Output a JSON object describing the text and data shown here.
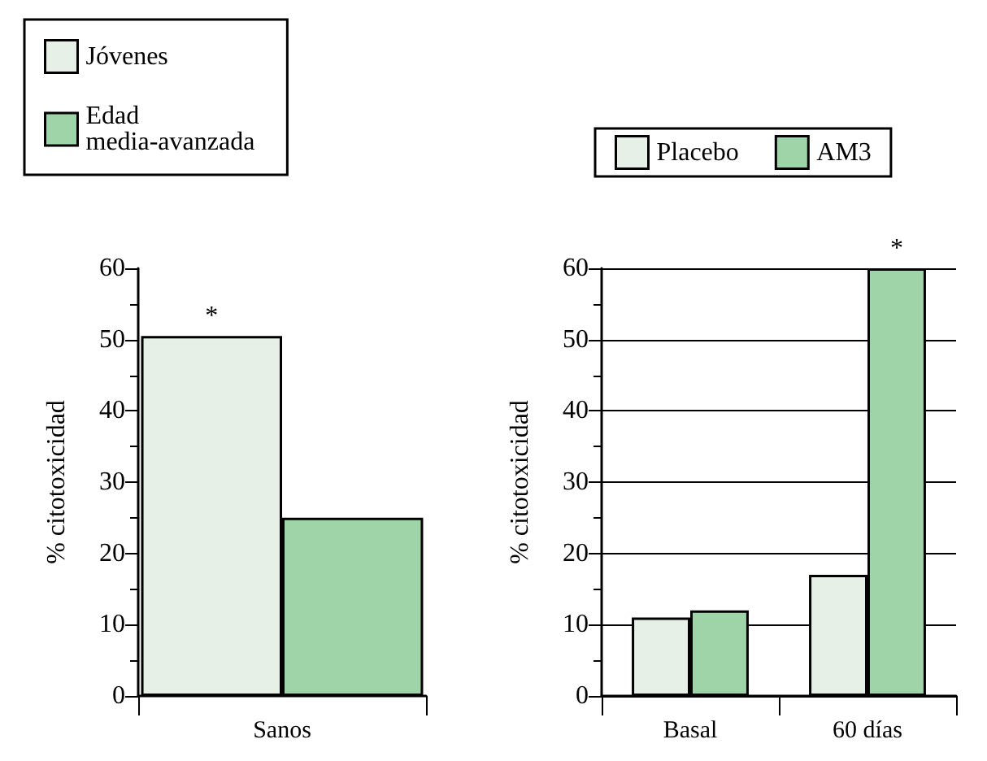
{
  "chart_data": [
    {
      "type": "bar",
      "ylabel": "% citotoxicidad",
      "categories": [
        "Sanos"
      ],
      "series": [
        {
          "name": "Jóvenes",
          "color": "#e6f0e6",
          "values": [
            50.5
          ]
        },
        {
          "name": "Edad media-avanzada",
          "color": "#9fd3a8",
          "values": [
            25
          ]
        }
      ],
      "ylim": [
        0,
        60
      ],
      "yticks": [
        0,
        10,
        20,
        30,
        40,
        50,
        60
      ],
      "grid": false,
      "legend": "top",
      "annotations": [
        {
          "text": "*",
          "x": "Sanos",
          "y": 50.5
        }
      ]
    },
    {
      "type": "bar",
      "ylabel": "% citotoxicidad",
      "categories": [
        "Basal",
        "60 días"
      ],
      "series": [
        {
          "name": "Placebo",
          "color": "#e6f0e6",
          "values": [
            11,
            17
          ]
        },
        {
          "name": "AM3",
          "color": "#9fd3a8",
          "values": [
            12,
            60
          ]
        }
      ],
      "ylim": [
        0,
        60
      ],
      "yticks": [
        0,
        10,
        20,
        30,
        40,
        50,
        60
      ],
      "grid": "y",
      "legend": "top",
      "annotations": [
        {
          "text": "*",
          "x": "60 días",
          "y": 60
        }
      ]
    }
  ]
}
